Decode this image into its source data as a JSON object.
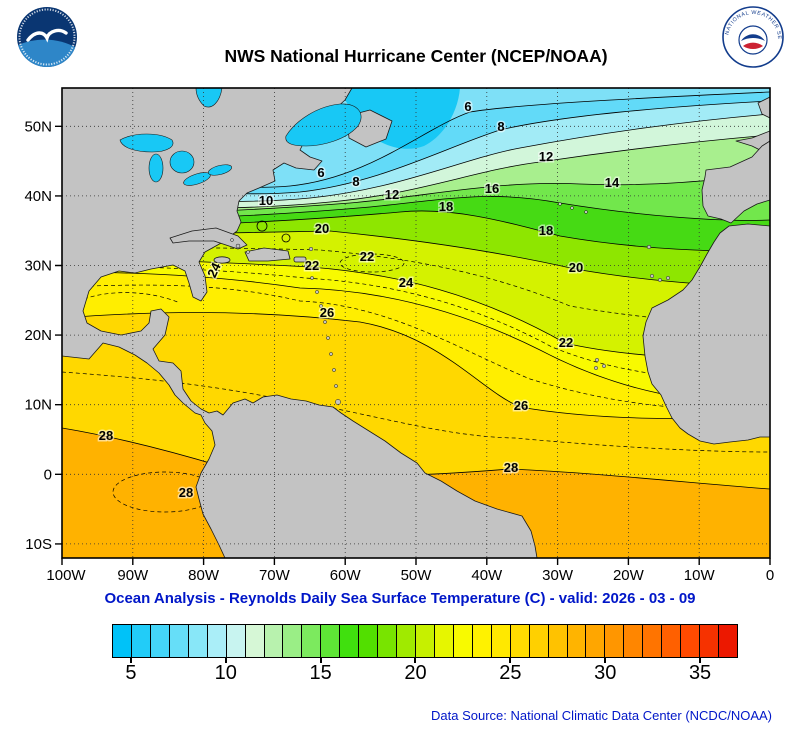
{
  "header": {
    "title": "NWS National Hurricane Center (NCEP/NOAA)",
    "nws_ring_text": "NATIONAL WEATHER SERVICE"
  },
  "map": {
    "lon_ticks": [
      "100W",
      "90W",
      "80W",
      "70W",
      "60W",
      "50W",
      "40W",
      "30W",
      "20W",
      "10W",
      "0"
    ],
    "lat_ticks": [
      "50N",
      "40N",
      "30N",
      "20N",
      "10N",
      "0",
      "10S"
    ],
    "isotherms_c": [
      6,
      8,
      10,
      12,
      14,
      16,
      18,
      20,
      22,
      24,
      26,
      28
    ],
    "contour_labels": [
      {
        "v": "6"
      },
      {
        "v": "8"
      },
      {
        "v": "12"
      },
      {
        "v": "14"
      },
      {
        "v": "16"
      },
      {
        "v": "18"
      },
      {
        "v": "18"
      },
      {
        "v": "6"
      },
      {
        "v": "8"
      },
      {
        "v": "12"
      },
      {
        "v": "10"
      },
      {
        "v": "20"
      },
      {
        "v": "20"
      },
      {
        "v": "22"
      },
      {
        "v": "22"
      },
      {
        "v": "22"
      },
      {
        "v": "24"
      },
      {
        "v": "24"
      },
      {
        "v": "26"
      },
      {
        "v": "26"
      },
      {
        "v": "28"
      },
      {
        "v": "28"
      },
      {
        "v": "28"
      }
    ]
  },
  "caption": "Ocean Analysis - Reynolds Daily Sea Surface Temperature (C) - valid: 2026 - 03 - 09",
  "colorbar": {
    "ticks": [
      "5",
      "10",
      "15",
      "20",
      "25",
      "30",
      "35"
    ],
    "range_c": [
      4,
      37
    ],
    "colors": [
      "#00c2f8",
      "#22ccf8",
      "#44d5f8",
      "#66def8",
      "#88e7f8",
      "#aaeef8",
      "#c8f4f0",
      "#d6f7d6",
      "#b8f2ae",
      "#9aee86",
      "#7cea5e",
      "#5ee536",
      "#40e00e",
      "#52df00",
      "#78e400",
      "#a0ea00",
      "#c6f000",
      "#e6f600",
      "#f8fa00",
      "#fff200",
      "#ffe800",
      "#ffdc00",
      "#ffd000",
      "#ffc200",
      "#ffb400",
      "#ffa600",
      "#ff9600",
      "#ff8600",
      "#ff7400",
      "#ff6000",
      "#ff4a00",
      "#f63200",
      "#ec1800"
    ]
  },
  "footer": "Data Source: National Climatic Data Center (NCDC/NOAA)",
  "colors": {
    "land": "#c3c3c3",
    "cold_water": "#18c8f5",
    "caption_blue": "#0016c8",
    "grid": "#333333"
  }
}
